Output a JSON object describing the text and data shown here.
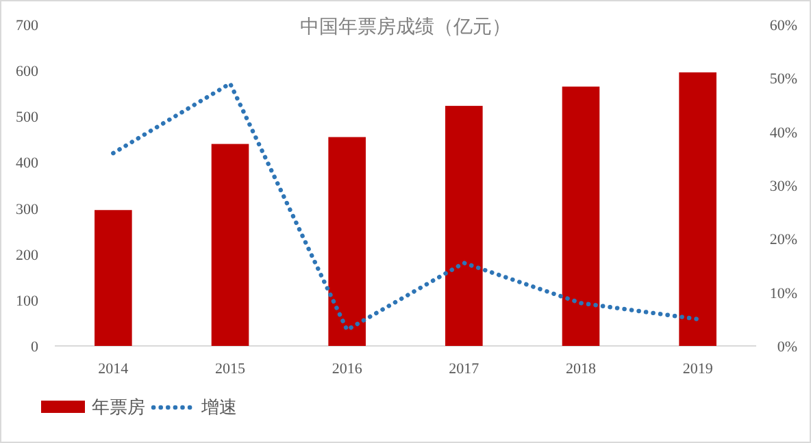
{
  "chart_data": {
    "type": "bar",
    "title": "中国年票房成绩（亿元）",
    "categories": [
      "2014",
      "2015",
      "2016",
      "2017",
      "2018",
      "2019"
    ],
    "series": [
      {
        "name": "年票房",
        "color": "#c00000",
        "values": [
          296,
          440,
          455,
          523,
          565,
          596
        ]
      },
      {
        "name": "增速",
        "type": "line",
        "axis": "y2",
        "color": "#2e75b6",
        "line_style": "dotted",
        "values": [
          36,
          49,
          3,
          15.5,
          8,
          5
        ]
      }
    ],
    "ylim": [
      0,
      700
    ],
    "yticks": [
      0,
      100,
      200,
      300,
      400,
      500,
      600,
      700
    ],
    "y2lim": [
      0,
      60
    ],
    "y2ticks": [
      {
        "value": 0,
        "label": "0%"
      },
      {
        "value": 10,
        "label": "10%"
      },
      {
        "value": 20,
        "label": "20%"
      },
      {
        "value": 30,
        "label": "30%"
      },
      {
        "value": 40,
        "label": "40%"
      },
      {
        "value": 50,
        "label": "50%"
      },
      {
        "value": 60,
        "label": "60%"
      }
    ],
    "grid": false,
    "legend": "bottom left"
  }
}
